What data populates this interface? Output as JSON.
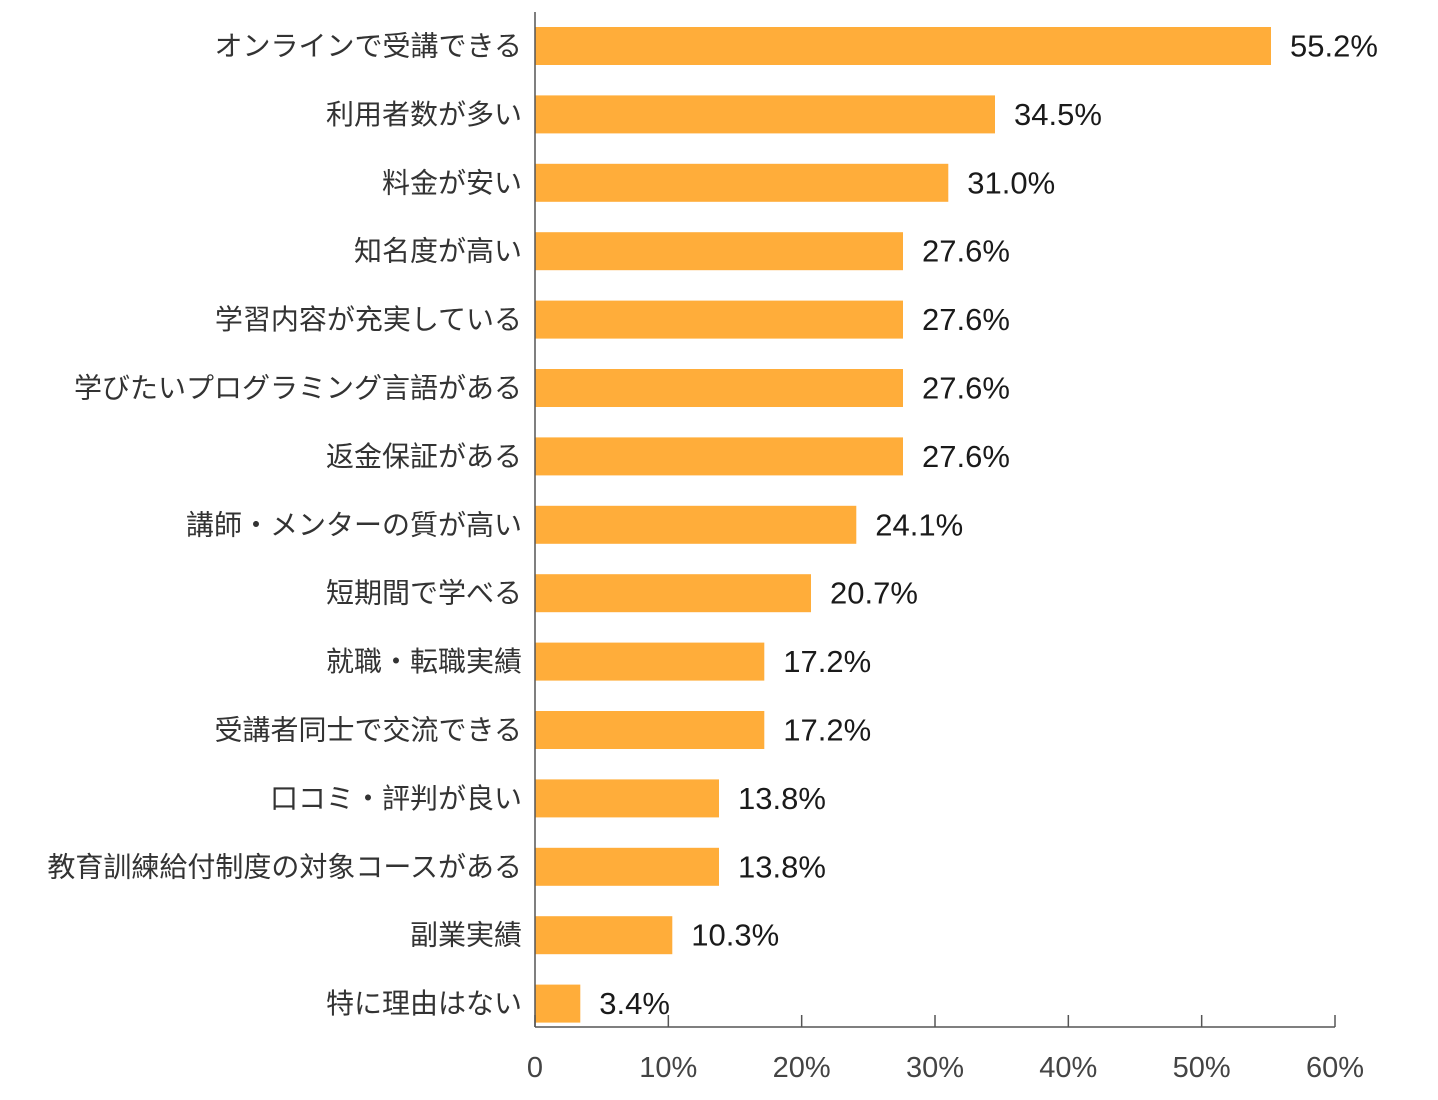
{
  "colors": {
    "bar": "#FFAD3A",
    "axis": "#555555",
    "text": "#333333"
  },
  "chart_data": {
    "type": "bar",
    "orientation": "horizontal",
    "categories": [
      "オンラインで受講できる",
      "利用者数が多い",
      "料金が安い",
      "知名度が高い",
      "学習内容が充実している",
      "学びたいプログラミング言語がある",
      "返金保証がある",
      "講師・メンターの質が高い",
      "短期間で学べる",
      "就職・転職実績",
      "受講者同士で交流できる",
      "口コミ・評判が良い",
      "教育訓練給付制度の対象コースがある",
      "副業実績",
      "特に理由はない"
    ],
    "values": [
      55.2,
      34.5,
      31.0,
      27.6,
      27.6,
      27.6,
      27.6,
      24.1,
      20.7,
      17.2,
      17.2,
      13.8,
      13.8,
      10.3,
      3.4
    ],
    "value_labels": [
      "55.2%",
      "34.5%",
      "31.0%",
      "27.6%",
      "27.6%",
      "27.6%",
      "27.6%",
      "24.1%",
      "20.7%",
      "17.2%",
      "17.2%",
      "13.8%",
      "13.8%",
      "10.3%",
      "3.4%"
    ],
    "xlim": [
      0,
      60
    ],
    "xticks": [
      0,
      10,
      20,
      30,
      40,
      50,
      60
    ],
    "xtick_labels": [
      "0",
      "10%",
      "20%",
      "30%",
      "40%",
      "50%",
      "60%"
    ],
    "grid": false,
    "legend": "none"
  }
}
